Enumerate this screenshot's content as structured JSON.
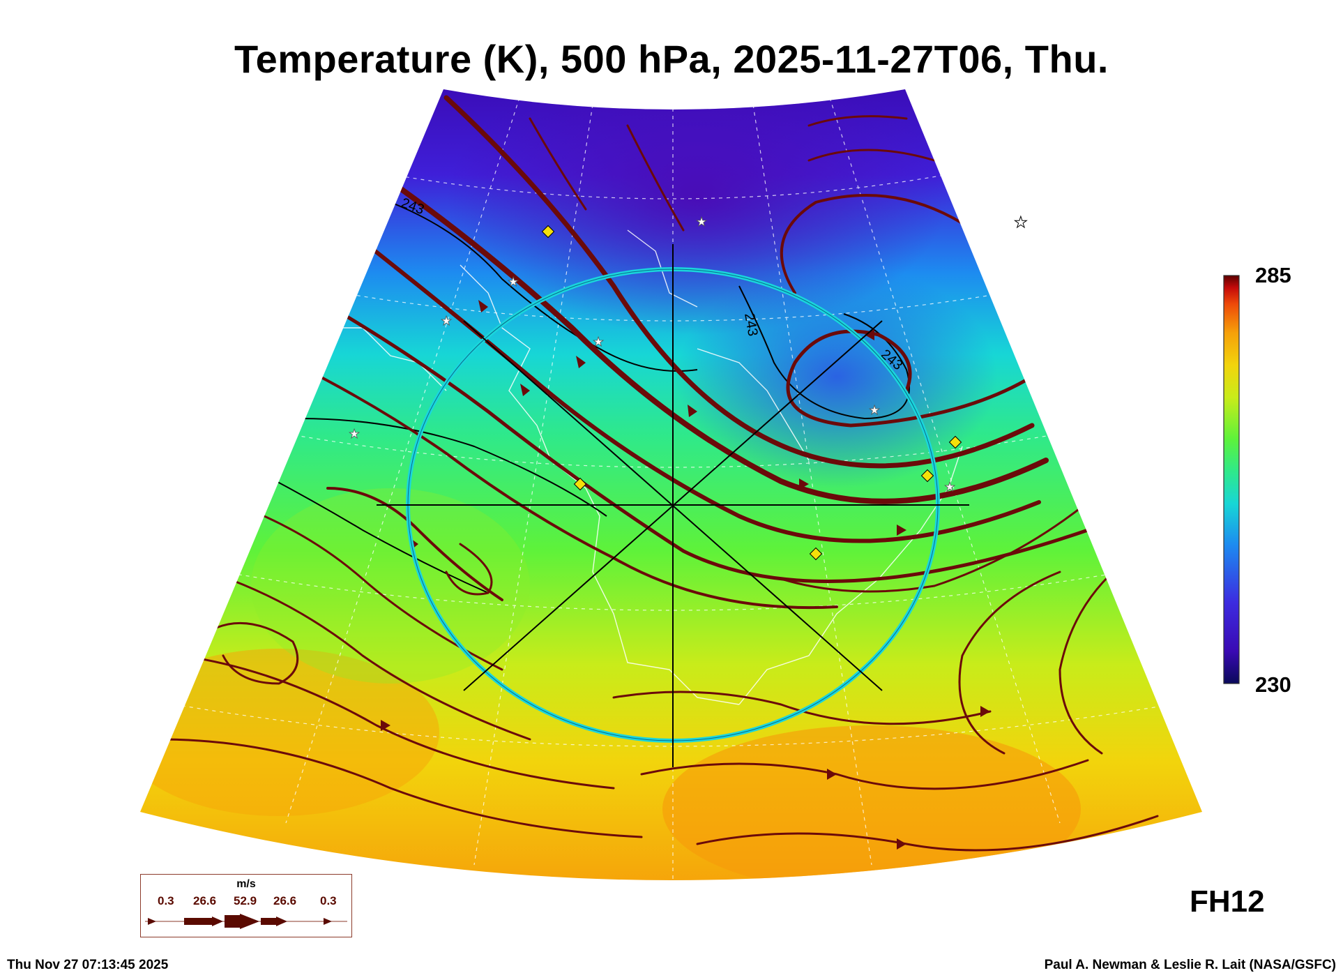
{
  "title": "Temperature (K), 500 hPa, 2025-11-27T06, Thu.",
  "colorbar": {
    "max_label": "285",
    "min_label": "230",
    "min": 230,
    "max": 285,
    "colors": [
      "#0a0a5a",
      "#3a0ab4",
      "#3c2ce0",
      "#1d8bf0",
      "#17d6d6",
      "#2fe98a",
      "#5ef23a",
      "#c8ec1a",
      "#f2d40c",
      "#f6a00a",
      "#ee4a0a",
      "#c40a0a",
      "#5c0000"
    ]
  },
  "map": {
    "contour_labels": [
      "243",
      "243",
      "243"
    ],
    "streamline_color": "#6b0a0a",
    "ring_color": "#1ad6dc",
    "marker_diamond_color": "#f5e00a",
    "marker_star_color": "#ffffff"
  },
  "forecast_hour": "FH12",
  "legend": {
    "unit": "m/s",
    "values": [
      "0.3",
      "26.6",
      "52.9",
      "26.6",
      "0.3"
    ]
  },
  "footer": {
    "timestamp": "Thu Nov 27 07:13:45 2025",
    "credit": "Paul A. Newman & Leslie R. Lait (NASA/GSFC)"
  }
}
